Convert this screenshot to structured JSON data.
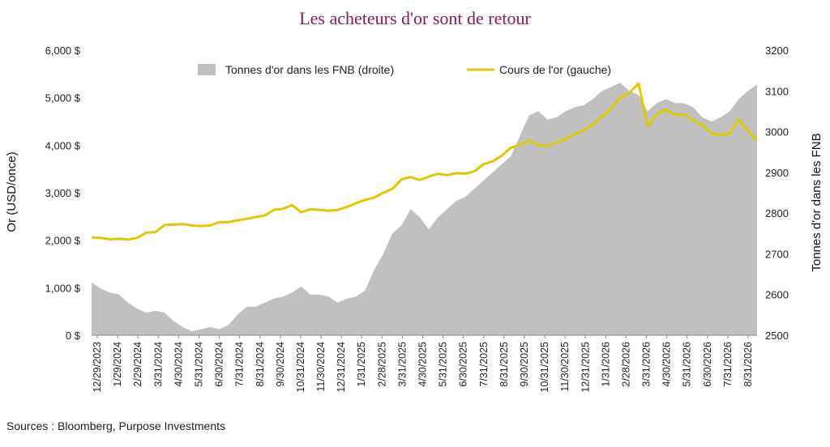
{
  "colors": {
    "title": "#8b1a5a",
    "area": "#c0c0c0",
    "line": "#e0c800",
    "axis": "#888888"
  },
  "chart_data": {
    "type": "line",
    "title": "Les acheteurs d'or sont de retour",
    "source": "Sources : Bloomberg, Purpose Investments",
    "ylabel_left": "Or (USD/once)",
    "ylabel_right": "Tonnes d'or dans les FNB",
    "ylim_left": [
      0,
      6000
    ],
    "ylim_right": [
      2500,
      3200
    ],
    "yticks_left": [
      "0 $",
      "1,000 $",
      "2,000 $",
      "3,000 $",
      "4,000 $",
      "5,000 $",
      "6,000 $"
    ],
    "yticks_left_values": [
      0,
      1000,
      2000,
      3000,
      4000,
      5000,
      6000
    ],
    "yticks_right": [
      "2500",
      "2600",
      "2700",
      "2800",
      "2900",
      "3000",
      "3100",
      "3200"
    ],
    "yticks_right_values": [
      2500,
      2600,
      2700,
      2800,
      2900,
      3000,
      3100,
      3200
    ],
    "xticks": [
      "12/29/2023",
      "1/29/2024",
      "2/29/2024",
      "3/31/2024",
      "4/30/2024",
      "5/31/2024",
      "6/30/2024",
      "7/31/2024",
      "8/31/2024",
      "9/30/2024",
      "10/31/2024",
      "11/30/2024",
      "12/31/2024",
      "1/31/2025",
      "2/28/2025",
      "3/31/2025",
      "4/30/2025",
      "5/31/2025",
      "6/30/2025",
      "7/31/2025",
      "8/31/2025",
      "9/30/2025",
      "10/31/2025",
      "11/30/2025",
      "12/31/2025",
      "1/31/2026",
      "2/28/2026",
      "3/31/2026",
      "4/30/2026",
      "5/31/2026",
      "6/30/2026",
      "7/31/2026",
      "8/31/2026"
    ],
    "legend_position": "top",
    "series": [
      {
        "name": "Tonnes d'or dans les FNB (droite)",
        "type": "area",
        "axis": "right",
        "values": [
          2630,
          2615,
          2605,
          2600,
          2580,
          2565,
          2555,
          2560,
          2555,
          2535,
          2520,
          2510,
          2515,
          2520,
          2515,
          2525,
          2550,
          2570,
          2570,
          2580,
          2590,
          2595,
          2605,
          2620,
          2600,
          2600,
          2595,
          2580,
          2590,
          2595,
          2610,
          2660,
          2700,
          2750,
          2770,
          2810,
          2790,
          2760,
          2790,
          2810,
          2830,
          2840,
          2860,
          2880,
          2900,
          2920,
          2940,
          2990,
          3040,
          3050,
          3030,
          3035,
          3050,
          3060,
          3065,
          3080,
          3100,
          3110,
          3120,
          3100,
          3090,
          3050,
          3070,
          3080,
          3070,
          3070,
          3060,
          3035,
          3025,
          3035,
          3050,
          3080,
          3100,
          3115
        ]
      },
      {
        "name": "Cours de l'or (gauche)",
        "type": "line",
        "axis": "left",
        "values": [
          2060,
          2050,
          2020,
          2030,
          2015,
          2050,
          2160,
          2170,
          2320,
          2330,
          2340,
          2310,
          2300,
          2310,
          2380,
          2380,
          2420,
          2450,
          2490,
          2520,
          2640,
          2660,
          2740,
          2590,
          2650,
          2640,
          2620,
          2640,
          2700,
          2780,
          2850,
          2900,
          3000,
          3080,
          3280,
          3330,
          3270,
          3340,
          3400,
          3370,
          3410,
          3400,
          3450,
          3600,
          3660,
          3780,
          3950,
          4000,
          4100,
          4000,
          3980,
          4050,
          4130,
          4230,
          4320,
          4430,
          4600,
          4780,
          5000,
          5100,
          5300,
          4400,
          4650,
          4750,
          4640,
          4650,
          4520,
          4430,
          4250,
          4210,
          4250,
          4550,
          4300,
          4100
        ]
      }
    ]
  }
}
